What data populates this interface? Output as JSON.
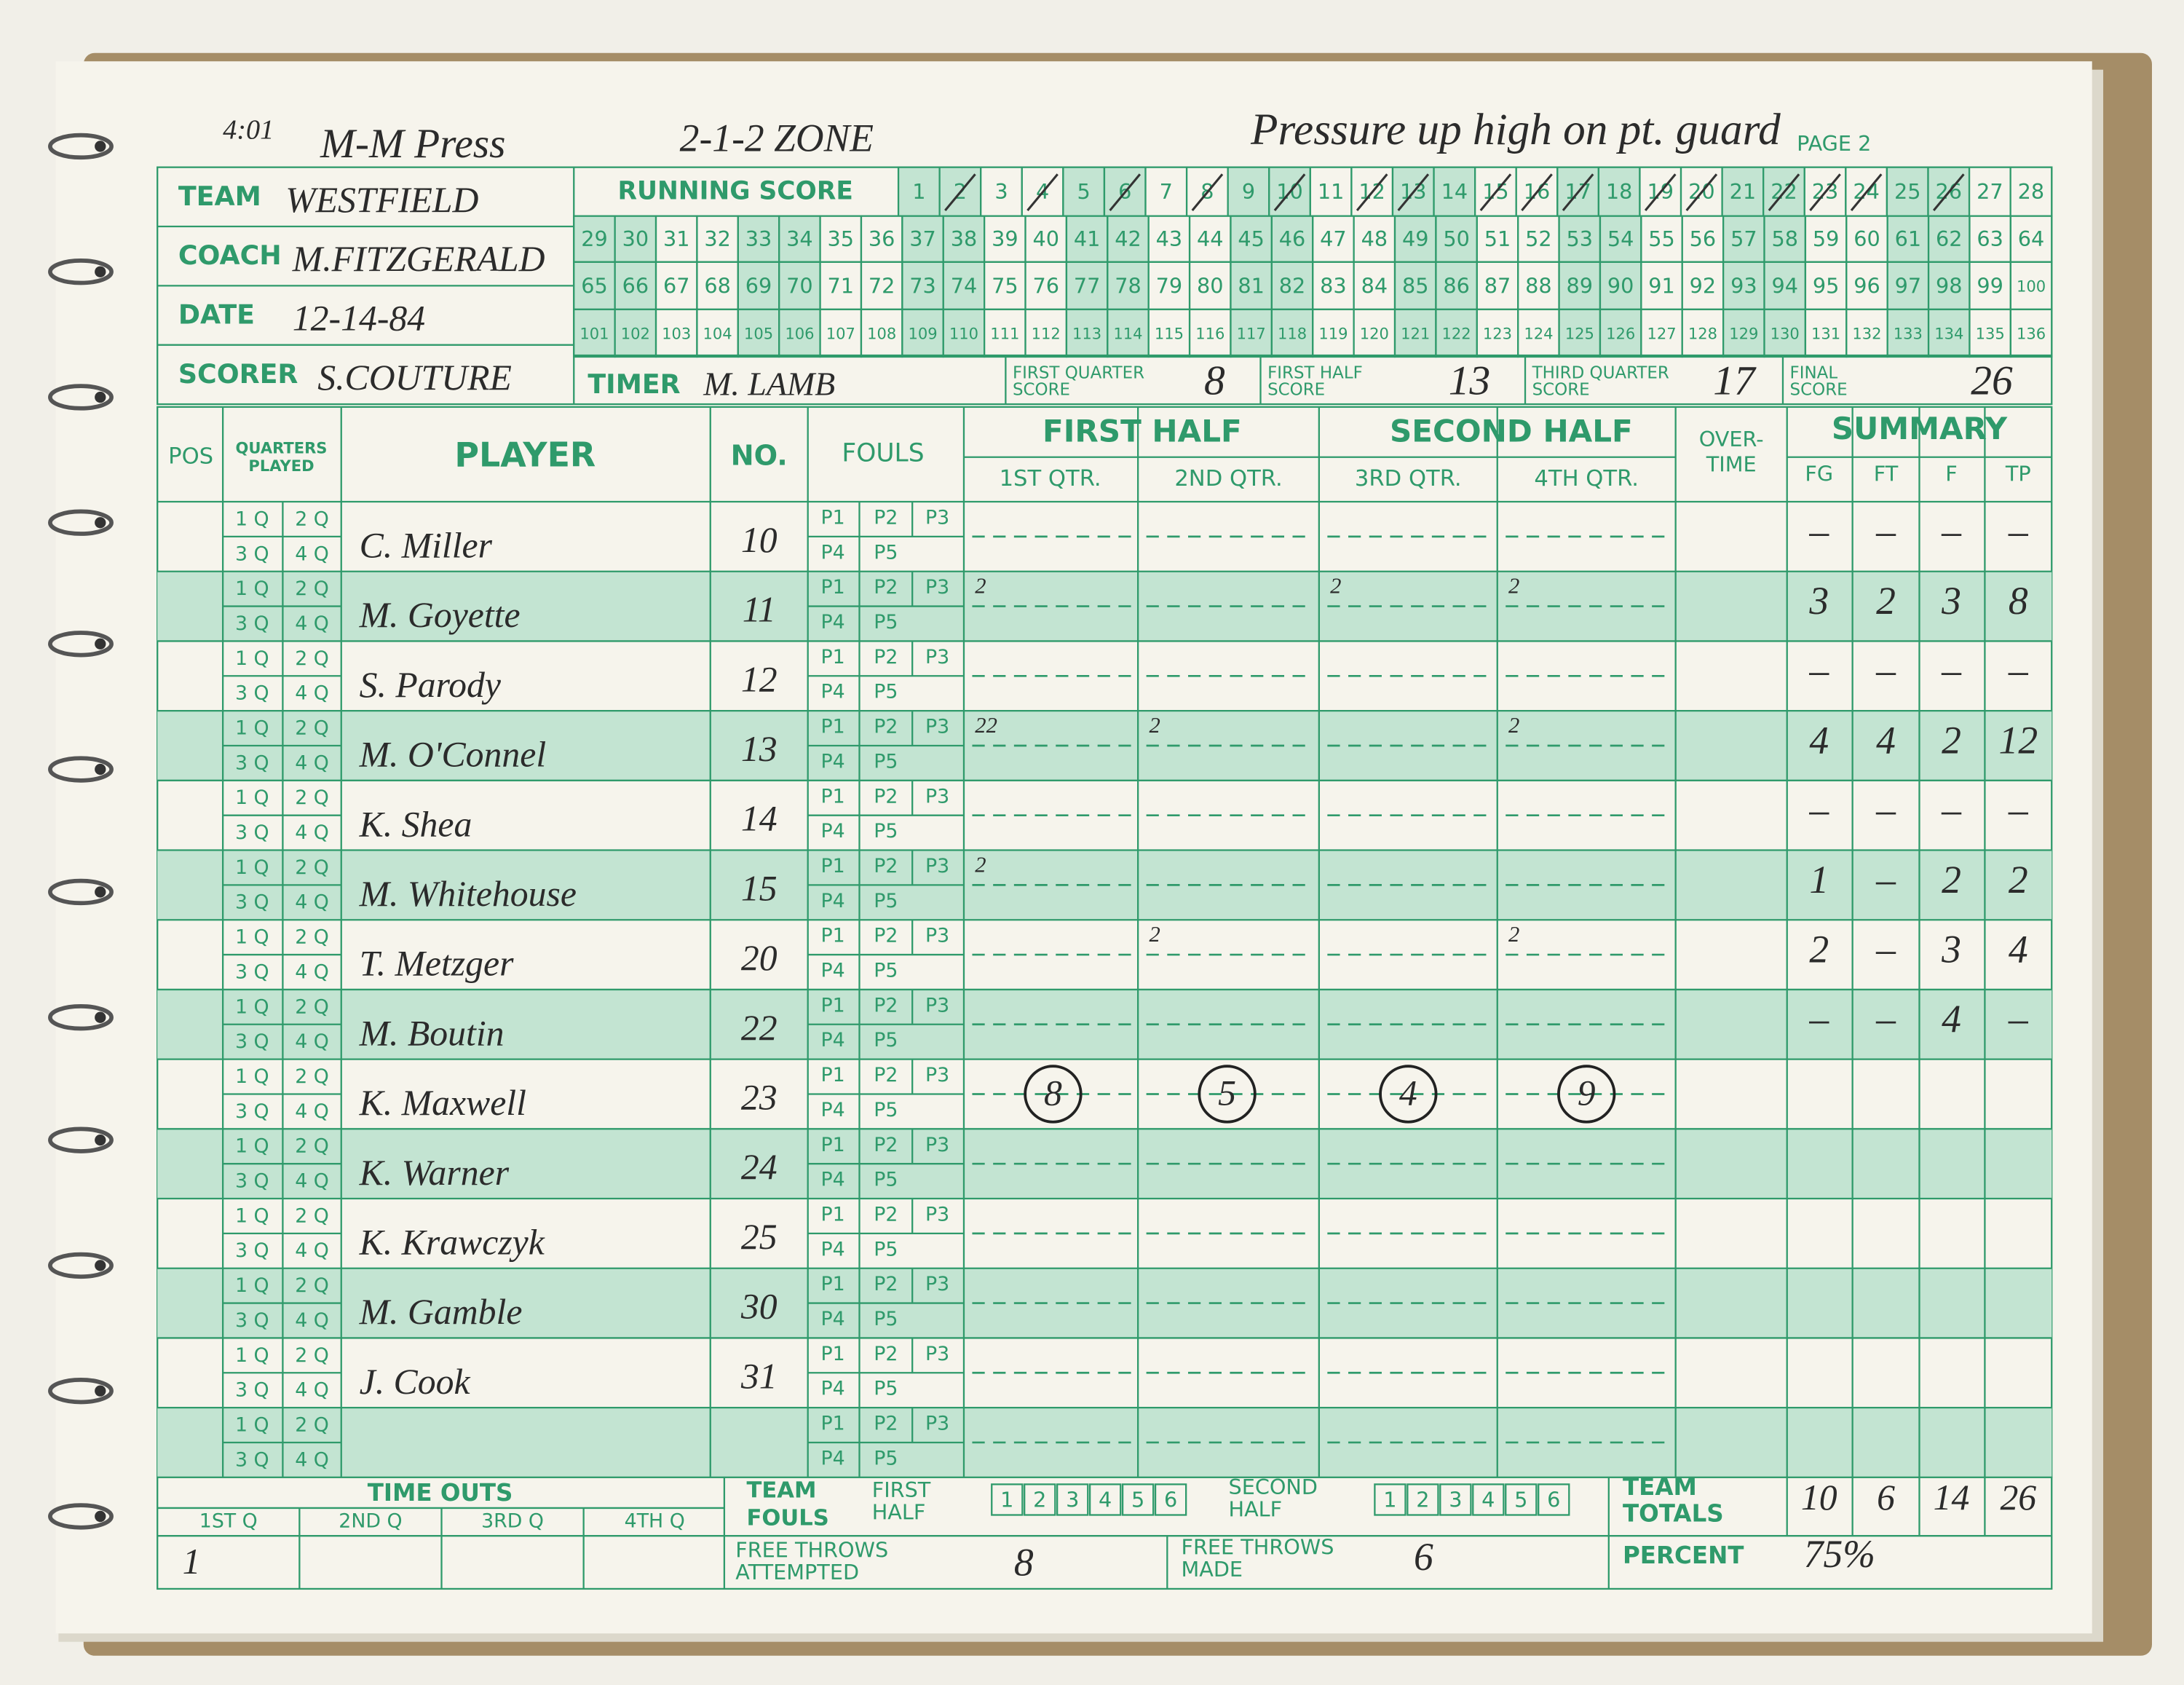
{
  "annotations": {
    "time": "4:01",
    "defense_1": "M-M Press",
    "defense_2": "2-1-2 ZONE",
    "note": "Pressure up high on pt. guard",
    "page": "PAGE 2"
  },
  "header": {
    "team_label": "TEAM",
    "team": "WESTFIELD",
    "coach_label": "COACH",
    "coach": "M.FITZGERALD",
    "date_label": "DATE",
    "date": "12-14-84",
    "scorer_label": "SCORER",
    "scorer": "S.COUTURE",
    "timer_label": "TIMER",
    "timer": "M. LAMB"
  },
  "running_score": {
    "label": "RUNNING SCORE",
    "numbers": [
      1,
      2,
      3,
      4,
      5,
      6,
      7,
      8,
      9,
      10,
      11,
      12,
      13,
      14,
      15,
      16,
      17,
      18,
      19,
      20,
      21,
      22,
      23,
      24,
      25,
      26,
      27,
      28,
      29,
      30,
      31,
      32,
      33,
      34,
      35,
      36,
      37,
      38,
      39,
      40,
      41,
      42,
      43,
      44,
      45,
      46,
      47,
      48,
      49,
      50,
      51,
      52,
      53,
      54,
      55,
      56,
      57,
      58,
      59,
      60,
      61,
      62,
      63,
      64,
      65,
      66,
      67,
      68,
      69,
      70,
      71,
      72,
      73,
      74,
      75,
      76,
      77,
      78,
      79,
      80,
      81,
      82,
      83,
      84,
      85,
      86,
      87,
      88,
      89,
      90,
      91,
      92,
      93,
      94,
      95,
      96,
      97,
      98,
      99,
      100,
      101,
      102,
      103,
      104,
      105,
      106,
      107,
      108,
      109,
      110,
      111,
      112,
      113,
      114,
      115,
      116,
      117,
      118,
      119,
      120,
      121,
      122,
      123,
      124,
      125,
      126,
      127,
      128,
      129,
      130,
      131,
      132,
      133,
      134,
      135,
      136
    ],
    "crossed": [
      2,
      4,
      6,
      8,
      10,
      12,
      13,
      15,
      16,
      17,
      19,
      20,
      22,
      23,
      24,
      26
    ]
  },
  "quarter_scores": [
    {
      "label": [
        "FIRST QUARTER",
        "SCORE"
      ],
      "value": 8
    },
    {
      "label": [
        "FIRST HALF",
        "SCORE"
      ],
      "value": 13
    },
    {
      "label": [
        "THIRD QUARTER",
        "SCORE"
      ],
      "value": 17
    },
    {
      "label": [
        "FINAL",
        "SCORE"
      ],
      "value": 26
    }
  ],
  "table": {
    "pos": "POS",
    "quarters_played": [
      "QUARTERS",
      "PLAYED"
    ],
    "player": "PLAYER",
    "no": "NO.",
    "fouls": "FOULS",
    "first_half": "FIRST HALF",
    "second_half": "SECOND HALF",
    "overtime": [
      "OVER-",
      "TIME"
    ],
    "summary": "SUMMARY",
    "quarters": [
      "1ST QTR.",
      "2ND QTR.",
      "3RD QTR.",
      "4TH QTR."
    ],
    "summary_columns": [
      "FG",
      "FT",
      "F",
      "TP"
    ],
    "quarter_boxes": [
      "1 Q",
      "2 Q",
      "3 Q",
      "4 Q"
    ],
    "foul_boxes": [
      "P1",
      "P2",
      "P3",
      "P4",
      "P5"
    ],
    "rows": [
      {
        "player": "C. Miller",
        "no": 10,
        "summary": [
          "–",
          "–",
          "–",
          "–"
        ]
      },
      {
        "player": "M. Goyette",
        "no": 11,
        "scoring": [
          "2",
          null,
          "2",
          "2"
        ],
        "summary": [
          3,
          2,
          3,
          8
        ]
      },
      {
        "player": "S. Parody",
        "no": 12,
        "summary": [
          "–",
          "–",
          "–",
          "–"
        ]
      },
      {
        "player": "M. O'Connel",
        "no": 13,
        "scoring": [
          "22",
          "2",
          null,
          "2"
        ],
        "summary": [
          4,
          4,
          2,
          12
        ]
      },
      {
        "player": "K. Shea",
        "no": 14,
        "summary": [
          "–",
          "–",
          "–",
          "–"
        ]
      },
      {
        "player": "M. Whitehouse",
        "no": 15,
        "scoring": [
          "2",
          null,
          null,
          null
        ],
        "summary": [
          1,
          "–",
          2,
          2
        ]
      },
      {
        "player": "T. Metzger",
        "no": 20,
        "scoring": [
          null,
          "2",
          null,
          "2"
        ],
        "summary": [
          2,
          "–",
          3,
          4
        ]
      },
      {
        "player": "M. Boutin",
        "no": 22,
        "summary": [
          "–",
          "–",
          4,
          "–"
        ]
      },
      {
        "player": "K. Maxwell",
        "no": 23,
        "quarter_totals": [
          8,
          5,
          4,
          9
        ]
      },
      {
        "player": "K. Warner",
        "no": 24
      },
      {
        "player": "K. Krawczyk",
        "no": 25
      },
      {
        "player": "M. Gamble",
        "no": 30
      },
      {
        "player": "J. Cook",
        "no": 31
      }
    ]
  },
  "footer": {
    "time_outs": "TIME OUTS",
    "time_out_quarters": [
      "1ST Q",
      "2ND Q",
      "3RD Q",
      "4TH Q"
    ],
    "time_outs_taken": [
      1,
      null,
      null,
      null
    ],
    "team_fouls": [
      "TEAM",
      "FOULS"
    ],
    "first_half": [
      "FIRST",
      "HALF"
    ],
    "second_half": [
      "SECOND",
      "HALF"
    ],
    "foul_boxes": [
      1,
      2,
      3,
      4,
      5,
      6
    ],
    "ft_attempted_label": [
      "FREE THROWS",
      "ATTEMPTED"
    ],
    "ft_attempted": 8,
    "ft_made_label": [
      "FREE THROWS",
      "MADE"
    ],
    "ft_made": 6,
    "team_totals_label": [
      "TEAM",
      "TOTALS"
    ],
    "team_totals": [
      10,
      6,
      14,
      26
    ],
    "percent_label": "PERCENT",
    "percent": "75%"
  }
}
